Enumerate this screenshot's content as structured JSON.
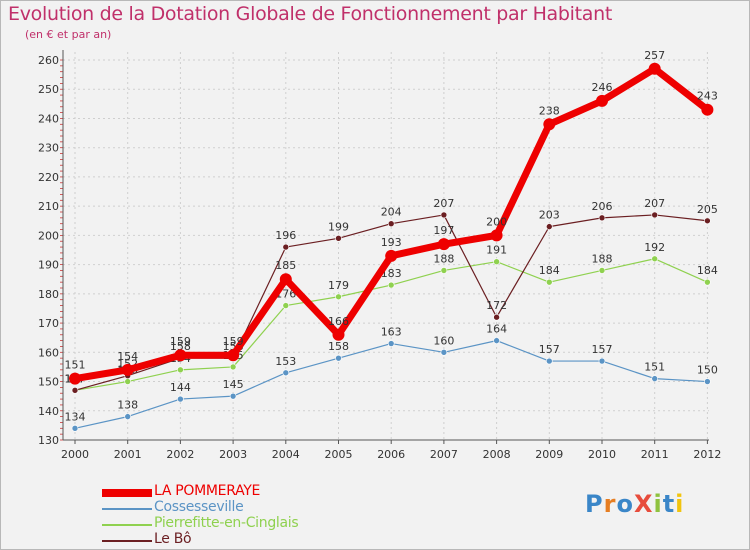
{
  "page": {
    "title": "Evolution de la Dotation Globale de Fonctionnement par Habitant",
    "subtitle": "(en € et par an)",
    "logo": "ProXiti",
    "title_color": "#c0306a"
  },
  "chart_data": {
    "type": "line",
    "title": "Evolution de la Dotation Globale de Fonctionnement par Habitant",
    "subtitle": "(en € et par an)",
    "xlabel": "",
    "ylabel": "",
    "x": [
      "2000",
      "2001",
      "2002",
      "2003",
      "2004",
      "2005",
      "2006",
      "2007",
      "2008",
      "2009",
      "2010",
      "2011",
      "2012"
    ],
    "ylim": [
      130,
      260
    ],
    "yticks": [
      130,
      140,
      150,
      160,
      170,
      180,
      190,
      200,
      210,
      220,
      230,
      240,
      250,
      260
    ],
    "grid": true,
    "legend_position": "bottom-left",
    "series": [
      {
        "name": "Cossesseville",
        "color": "#5b94c5",
        "values": [
          134,
          138,
          144,
          145,
          153,
          158,
          163,
          160,
          164,
          157,
          157,
          151,
          150
        ]
      },
      {
        "name": "Pierrefitte-en-Cinglais",
        "color": "#8fd14f",
        "values": [
          147,
          150,
          154,
          155,
          176,
          179,
          183,
          188,
          191,
          184,
          188,
          192,
          184
        ]
      },
      {
        "name": "Le Bô",
        "color": "#6b1f22",
        "values": [
          147,
          152,
          158,
          158,
          196,
          199,
          204,
          207,
          172,
          203,
          206,
          207,
          205
        ]
      },
      {
        "name": "LA POMMERAYE",
        "color": "#ee0000",
        "values": [
          151,
          154,
          159,
          159,
          185,
          166,
          193,
          197,
          200,
          238,
          246,
          257,
          243
        ]
      }
    ],
    "legend_order": [
      "LA POMMERAYE",
      "Cossesseville",
      "Pierrefitte-en-Cinglais",
      "Le Bô"
    ]
  }
}
